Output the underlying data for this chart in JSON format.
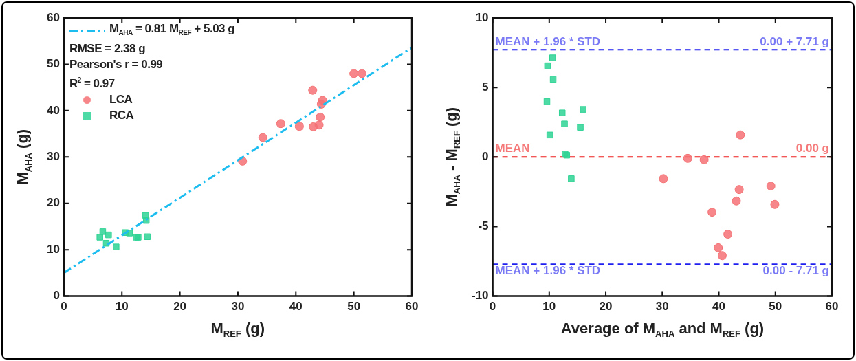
{
  "chart_data": [
    {
      "type": "scatter",
      "xlabel": "M$_{REF}$ (g)",
      "ylabel": "M$_{AHA}$ (g)",
      "xlim": [
        0,
        60
      ],
      "ylim": [
        0,
        60
      ],
      "xticks": [
        0,
        10,
        20,
        30,
        40,
        50,
        60
      ],
      "yticks": [
        0,
        10,
        20,
        30,
        40,
        50,
        60
      ],
      "grid": false,
      "legend": "top left",
      "annotations": [
        "RMSE = 2.38 g",
        "Pearson's r = 0.99",
        "R$^{2}$ = 0.97"
      ],
      "series": [
        {
          "type": "line",
          "name": "M$_{AHA}$ = 0.81 M$_{REF}$ + 5.03 g",
          "color": "#1ebdf0",
          "line_style": "dashdot",
          "marker": "none",
          "x": [
            0,
            60
          ],
          "values": [
            5.0,
            53.6
          ]
        },
        {
          "name": "LCA",
          "color": "#f47174",
          "marker": "circle",
          "x": [
            50.0,
            51.4,
            42.9,
            44.6,
            44.4,
            44.2,
            44.0,
            43.0,
            40.6,
            37.4,
            34.3,
            30.8
          ],
          "values": [
            48.0,
            48.0,
            44.4,
            42.2,
            41.4,
            38.6,
            36.9,
            36.5,
            36.6,
            37.2,
            34.2,
            29.1
          ]
        },
        {
          "name": "RCA",
          "color": "#2fd394",
          "marker": "square",
          "x": [
            6.2,
            6.7,
            7.7,
            7.3,
            9.0,
            10.6,
            11.3,
            12.5,
            12.8,
            14.1,
            14.2,
            14.4
          ],
          "values": [
            12.7,
            13.9,
            13.2,
            11.4,
            10.6,
            13.7,
            13.6,
            12.7,
            12.7,
            17.4,
            16.3,
            12.8
          ]
        }
      ]
    },
    {
      "type": "scatter",
      "xlabel": "Average of M$_{AHA}$ and M$_{REF}$ (g)",
      "ylabel": "M$_{AHA}$ - M$_{REF}$ (g)",
      "xlim": [
        0,
        60
      ],
      "ylim": [
        -10,
        10
      ],
      "xticks": [
        0,
        10,
        20,
        30,
        40,
        50,
        60
      ],
      "yticks": [
        -10,
        -5,
        0,
        5,
        10
      ],
      "grid": false,
      "legend": false,
      "ref_lines": [
        {
          "axis": "y",
          "value": 7.71,
          "label": "MEAN + 1.96 * STD",
          "color": "#1f1fef",
          "line_style": "dashed"
        },
        {
          "axis": "y",
          "value": 0,
          "label": "MEAN",
          "color": "#ee1f1f",
          "line_style": "dashed"
        },
        {
          "axis": "y",
          "value": -7.71,
          "label": "MEAN + 1.96 * STD",
          "color": "#1f1fef",
          "line_style": "dashed"
        }
      ],
      "annotations": [
        {
          "text": "0.00 + 7.71 g",
          "y": 7.71
        },
        {
          "text": "0.00 g",
          "y": 0
        },
        {
          "text": "0.00 - 7.71 g",
          "y": -7.71
        }
      ],
      "series": [
        {
          "color": "#2fd394",
          "marker": "square",
          "x": [
            10.6,
            9.7,
            10.7,
            9.6,
            12.3,
            16.0,
            12.7,
            15.5,
            10.1,
            12.8,
            13.1,
            13.9
          ],
          "values": [
            7.13,
            6.56,
            5.58,
            3.99,
            3.17,
            3.42,
            2.38,
            2.13,
            1.58,
            0.22,
            0.13,
            -1.56
          ]
        },
        {
          "color": "#f47174",
          "marker": "circle",
          "x": [
            30.2,
            34.5,
            37.4,
            38.8,
            39.9,
            40.6,
            41.6,
            43.1,
            43.6,
            43.8,
            49.2,
            49.9
          ],
          "values": [
            -1.56,
            -0.1,
            -0.2,
            -3.97,
            -6.53,
            -7.09,
            -5.55,
            -3.16,
            -2.34,
            1.59,
            -2.09,
            -3.41
          ]
        }
      ]
    }
  ]
}
